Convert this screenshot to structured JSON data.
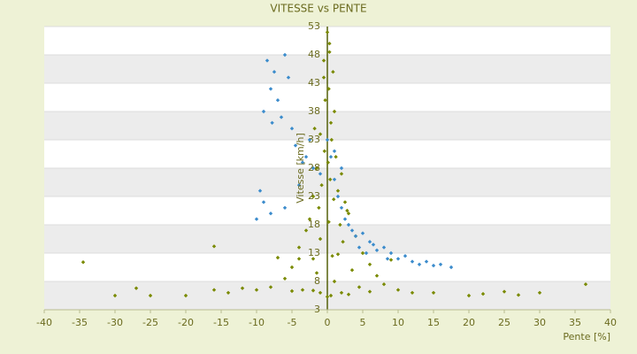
{
  "chart_data": {
    "type": "scatter",
    "title": "VITESSE vs PENTE",
    "x_label": "Pente [%]",
    "y_label": "Vitesse [km/h]",
    "xlim": [
      -40,
      40
    ],
    "xticks": [
      -40,
      -35,
      -30,
      -25,
      -20,
      -15,
      -10,
      -5,
      0,
      5,
      10,
      15,
      20,
      25,
      30,
      35,
      40
    ],
    "ylim": [
      3,
      53
    ],
    "yticks": [
      3,
      8,
      13,
      18,
      23,
      28,
      33,
      38,
      43,
      48,
      53
    ],
    "grid": true,
    "series": [
      {
        "color": "#7a8a00",
        "x": [
          0,
          0.3,
          -0.5,
          0.8,
          0.2,
          -0.3,
          1,
          0.5,
          -1,
          0.6,
          -0.4,
          1.2,
          0.1,
          -1.5,
          2,
          0.4,
          -0.8,
          1.5,
          -2,
          0.9,
          2.5,
          -1.2,
          3,
          -2.5,
          0.2,
          1.8,
          -3,
          4,
          -1,
          2.2,
          -4,
          5,
          0.7,
          -2,
          6,
          -5,
          3.5,
          -1.5,
          7,
          -6,
          1,
          8,
          -8,
          4.5,
          -3.5,
          10,
          -10,
          2,
          -1,
          12,
          -14,
          0.5,
          6,
          -5,
          15,
          -16,
          20,
          -20,
          25,
          -25,
          30,
          -30,
          -34.5,
          22,
          -12,
          3,
          -2,
          0,
          -16,
          -4,
          1.5,
          -7,
          9,
          -0.5,
          0.3,
          -1.8,
          2.8,
          36.5,
          -27,
          27
        ],
        "values": [
          52,
          50,
          47,
          45,
          42,
          40,
          38,
          36,
          34,
          33,
          31,
          30,
          29,
          28,
          27,
          26,
          25,
          24,
          23,
          22.5,
          22,
          21,
          20,
          19,
          18.5,
          18,
          17,
          16,
          15.5,
          15,
          14,
          13,
          12.5,
          12,
          11,
          10.5,
          10,
          9.5,
          9,
          8.5,
          8,
          7.5,
          7,
          7,
          6.5,
          6.5,
          6.5,
          6,
          6,
          6,
          6,
          5.5,
          6.2,
          6.3,
          6,
          6.5,
          5.5,
          5.5,
          6.2,
          5.5,
          6,
          5.5,
          11.4,
          5.8,
          6.8,
          5.7,
          6.4,
          5.3,
          14.2,
          12,
          12.8,
          12.2,
          11.8,
          44,
          48.5,
          35,
          20.5,
          7.5,
          6.8,
          5.6
        ]
      },
      {
        "color": "#3c8ccc",
        "x": [
          -8.5,
          -7.5,
          -6,
          -5.5,
          -8,
          -7,
          -9,
          -6.5,
          -5,
          -7.8,
          -4.5,
          -3,
          -2,
          -9.5,
          -9,
          -8,
          -10,
          -6,
          -4,
          -1,
          0.5,
          1,
          1.5,
          2,
          2.5,
          3,
          3.5,
          4,
          5,
          6,
          6.5,
          7,
          8,
          9,
          10,
          11,
          12,
          13,
          14,
          15,
          16,
          17.5,
          4.5,
          5.5,
          8.5,
          -3.5,
          -2.5,
          0,
          1,
          2
        ],
        "values": [
          47,
          45,
          48,
          44,
          42,
          40,
          38,
          37,
          35,
          36,
          32,
          30,
          28,
          24,
          22,
          20,
          19,
          21,
          25,
          27,
          30,
          26,
          23,
          21,
          19,
          18,
          17,
          16,
          16.5,
          15,
          14.5,
          13.5,
          14,
          13,
          12,
          12.5,
          11.5,
          11,
          11.5,
          10.8,
          11,
          10.5,
          14,
          13,
          12,
          29,
          33,
          33,
          31,
          28
        ]
      }
    ]
  }
}
